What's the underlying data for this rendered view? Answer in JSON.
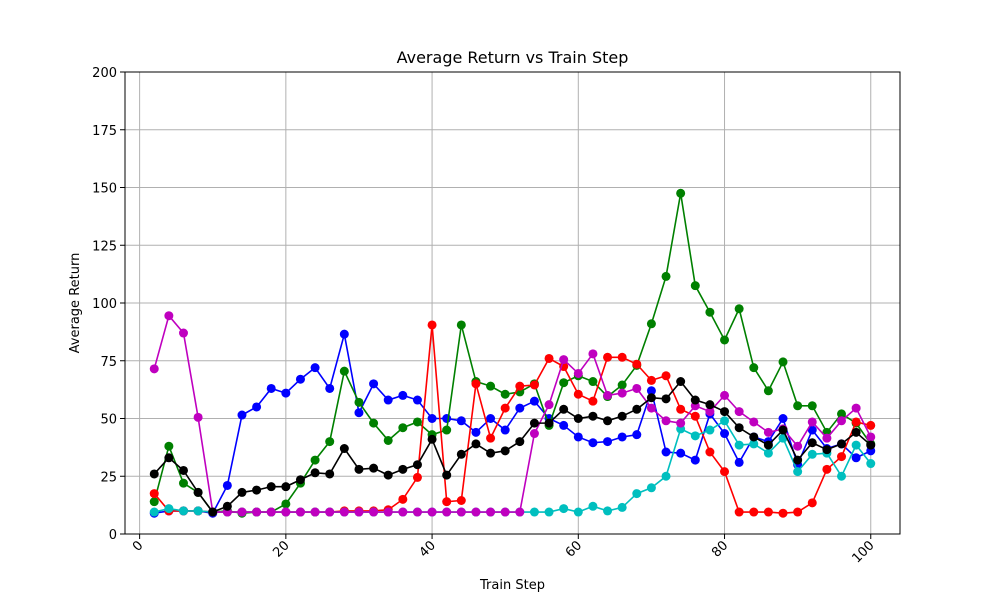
{
  "chart_data": {
    "type": "line",
    "title": "Average Return vs Train Step",
    "xlabel": "Train Step",
    "ylabel": "Average Return",
    "xlim": [
      -2,
      104
    ],
    "ylim": [
      0,
      200
    ],
    "xticks": [
      0,
      20,
      40,
      60,
      80,
      100
    ],
    "yticks": [
      0,
      25,
      50,
      75,
      100,
      125,
      150,
      175,
      200
    ],
    "grid": true,
    "x": [
      2,
      4,
      6,
      8,
      10,
      12,
      14,
      16,
      18,
      20,
      22,
      24,
      26,
      28,
      30,
      32,
      34,
      36,
      38,
      40,
      42,
      44,
      46,
      48,
      50,
      52,
      54,
      56,
      58,
      60,
      62,
      64,
      66,
      68,
      70,
      72,
      74,
      76,
      78,
      80,
      82,
      84,
      86,
      88,
      90,
      92,
      94,
      96,
      98,
      100
    ],
    "series": [
      {
        "color": "#0000ff",
        "values": [
          9,
          10,
          10,
          10,
          9,
          21,
          51.5,
          55,
          63,
          61,
          67,
          72,
          63,
          86.5,
          52.5,
          65,
          58,
          60,
          58,
          50,
          50,
          49,
          44,
          50,
          45,
          54.5,
          57.5,
          50,
          47,
          42,
          39.5,
          40,
          42,
          43,
          62,
          35.5,
          35,
          32,
          52,
          43.5,
          31,
          42,
          40,
          50,
          30,
          45,
          37,
          39,
          33,
          36
        ]
      },
      {
        "color": "#008000",
        "values": [
          14,
          38,
          22,
          18,
          9.5,
          10,
          9,
          9.5,
          9.5,
          13,
          22,
          32,
          40,
          70.5,
          57,
          48,
          40.5,
          46,
          48.5,
          43,
          45,
          90.5,
          66,
          64,
          60.5,
          61.5,
          65,
          47,
          65.5,
          68.5,
          66,
          59.5,
          64.5,
          73,
          91,
          111.5,
          147.5,
          107.5,
          96,
          84,
          97.5,
          72,
          62,
          74.5,
          55.5,
          55.5,
          44,
          52,
          48,
          39
        ]
      },
      {
        "color": "#ff0000",
        "values": [
          17.5,
          10,
          10,
          10,
          9.5,
          9.5,
          9.5,
          9.5,
          9.5,
          9.5,
          9.5,
          9.5,
          9.5,
          10,
          10,
          10,
          10.5,
          15,
          24.5,
          90.5,
          14,
          14.5,
          65,
          41.5,
          54.5,
          64,
          64.5,
          76,
          72.5,
          60.5,
          57.5,
          76.5,
          76.5,
          73.5,
          66.5,
          68.5,
          54,
          51,
          35.5,
          27,
          9.5,
          9.5,
          9.5,
          9,
          9.5,
          13.5,
          28,
          33.5,
          48.5,
          47
        ]
      },
      {
        "color": "#00bfbf",
        "values": [
          9.5,
          11,
          10,
          10,
          9.5,
          9.5,
          9.5,
          9.5,
          9.5,
          9.5,
          9.5,
          9.5,
          9.5,
          9.5,
          9.5,
          9.5,
          9.5,
          9.5,
          9.5,
          9.5,
          9.5,
          9.5,
          9.5,
          9.5,
          9.5,
          9.5,
          9.5,
          9.5,
          11,
          9.5,
          12,
          10,
          11.5,
          17.5,
          20,
          25,
          45.5,
          42.5,
          45,
          49,
          38.5,
          39,
          35,
          41.5,
          27,
          34.5,
          35,
          25,
          38.5,
          30.5
        ]
      },
      {
        "color": "#bf00bf",
        "values": [
          71.5,
          94.5,
          87,
          50.5,
          9.5,
          9.5,
          9.5,
          9.5,
          9.5,
          9.5,
          9.5,
          9.5,
          9.5,
          9.5,
          9.5,
          9.5,
          9.5,
          9.5,
          9.5,
          9.5,
          9.5,
          9.5,
          9.5,
          9.5,
          9.5,
          9.5,
          43.5,
          56,
          75.5,
          69.5,
          78,
          60,
          61,
          63,
          54.5,
          49,
          48,
          55.5,
          53,
          60,
          53,
          48.5,
          44,
          45.5,
          38,
          48.5,
          41.5,
          49,
          54.5,
          42
        ]
      },
      {
        "color": "#000000",
        "values": [
          26,
          33,
          27.5,
          18,
          9.5,
          12,
          18,
          19,
          20.5,
          20.5,
          23.5,
          26.5,
          26,
          37,
          28,
          28.5,
          25.5,
          28,
          30,
          41,
          25.5,
          34.5,
          39,
          35,
          36,
          40,
          48,
          48,
          54,
          50,
          51,
          49,
          51,
          54,
          59,
          58.5,
          66,
          58,
          56,
          53,
          46,
          42,
          38.5,
          45,
          32,
          39.5,
          36.5,
          39,
          44,
          38.5
        ]
      }
    ]
  }
}
